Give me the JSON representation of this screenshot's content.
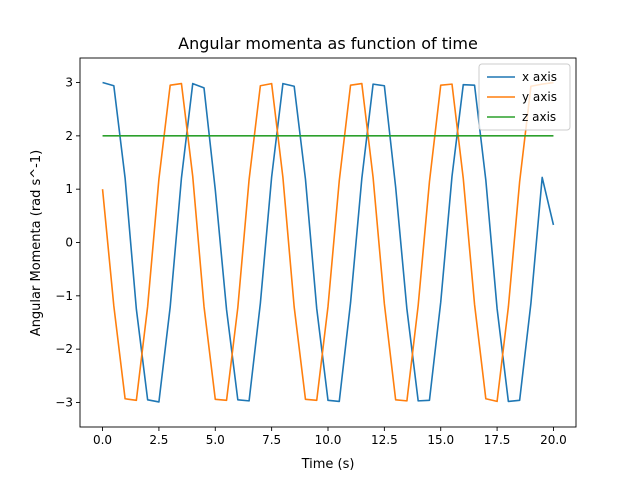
{
  "chart_data": {
    "type": "line",
    "title": "Angular momenta as function of time",
    "xlabel": "Time (s)",
    "ylabel": "Angular Momenta (rad s^-1)",
    "xlim": [
      -1.0,
      21.0
    ],
    "ylim": [
      -3.46,
      3.46
    ],
    "xticks": [
      0.0,
      2.5,
      5.0,
      7.5,
      10.0,
      12.5,
      15.0,
      17.5,
      20.0
    ],
    "xtick_labels": [
      "0.0",
      "2.5",
      "5.0",
      "7.5",
      "10.0",
      "12.5",
      "15.0",
      "17.5",
      "20.0"
    ],
    "yticks": [
      3,
      2,
      1,
      0,
      -1,
      -2,
      -3
    ],
    "ytick_labels": [
      "3",
      "2",
      "1",
      "0",
      "−1",
      "−2",
      "−3"
    ],
    "grid": false,
    "legend_position": "top-right",
    "x": [
      0.0,
      0.5,
      1.0,
      1.5,
      2.0,
      2.5,
      3.0,
      3.5,
      4.0,
      4.5,
      5.0,
      5.5,
      6.0,
      6.5,
      7.0,
      7.5,
      8.0,
      8.5,
      9.0,
      9.5,
      10.0,
      10.5,
      11.0,
      11.5,
      12.0,
      12.5,
      13.0,
      13.5,
      14.0,
      14.5,
      15.0,
      15.5,
      16.0,
      16.5,
      17.0,
      17.5,
      18.0,
      18.5,
      19.0,
      19.5,
      20.0
    ],
    "series": [
      {
        "name": "x axis",
        "color": "#1f77b4",
        "values": [
          3.0,
          2.94,
          1.21,
          -1.25,
          -2.95,
          -2.99,
          -1.21,
          1.21,
          2.98,
          2.9,
          0.99,
          -1.26,
          -2.95,
          -2.97,
          -1.14,
          1.23,
          2.98,
          2.93,
          1.19,
          -1.24,
          -2.96,
          -2.98,
          -1.13,
          1.2,
          2.97,
          2.94,
          1.04,
          -1.25,
          -2.97,
          -2.96,
          -1.12,
          1.24,
          2.96,
          2.95,
          1.17,
          -1.24,
          -2.98,
          -2.96,
          -1.14,
          1.22,
          0.33
        ]
      },
      {
        "name": "y axis",
        "color": "#ff7f0e",
        "values": [
          1.0,
          -1.19,
          -2.93,
          -2.96,
          -1.2,
          1.19,
          2.95,
          2.98,
          1.24,
          -1.2,
          -2.94,
          -2.96,
          -1.22,
          1.18,
          2.94,
          2.98,
          1.22,
          -1.21,
          -2.94,
          -2.96,
          -1.2,
          1.16,
          2.95,
          2.98,
          1.22,
          -1.15,
          -2.95,
          -2.97,
          -1.18,
          1.14,
          2.95,
          2.97,
          1.2,
          -1.16,
          -2.93,
          -2.98,
          -1.21,
          1.14,
          2.93,
          2.97,
          3.0
        ]
      },
      {
        "name": "z axis",
        "color": "#2ca02c",
        "values": [
          2.0,
          2.0,
          2.0,
          2.0,
          2.0,
          2.0,
          2.0,
          2.0,
          2.0,
          2.0,
          2.0,
          2.0,
          2.0,
          2.0,
          2.0,
          2.0,
          2.0,
          2.0,
          2.0,
          2.0,
          2.0,
          2.0,
          2.0,
          2.0,
          2.0,
          2.0,
          2.0,
          2.0,
          2.0,
          2.0,
          2.0,
          2.0,
          2.0,
          2.0,
          2.0,
          2.0,
          2.0,
          2.0,
          2.0,
          2.0,
          2.0
        ]
      }
    ]
  }
}
